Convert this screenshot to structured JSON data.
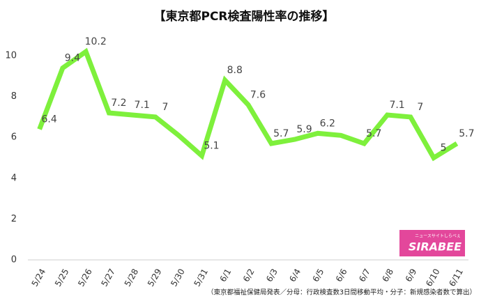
{
  "chart_data": {
    "type": "line",
    "title": "【東京都PCR検査陽性率の推移】",
    "footnote": "（東京都福祉保健局発表／分母：行政検査数3日間移動平均・分子：新規感染者数で算出）",
    "categories": [
      "5/24",
      "5/25",
      "5/26",
      "5/27",
      "5/28",
      "5/29",
      "5/30",
      "5/31",
      "6/1",
      "6/2",
      "6/3",
      "6/4",
      "6/5",
      "6/6",
      "6/7",
      "6/8",
      "6/9",
      "6/10",
      "6/11"
    ],
    "values": [
      6.4,
      9.4,
      10.2,
      7.2,
      7.1,
      7,
      6.1,
      5.1,
      8.8,
      7.6,
      5.7,
      5.9,
      6.2,
      6.1,
      5.7,
      7.1,
      7,
      5,
      5.7
    ],
    "value_labels": [
      "6.4",
      "9.4",
      "10.2",
      "7.2",
      "7.1",
      "7",
      null,
      "5.1",
      "8.8",
      "7.6",
      "5.7",
      "5.9",
      "6.2",
      null,
      "5.7",
      "7.1",
      "7",
      "5",
      "5.7"
    ],
    "color": "#7ef03c",
    "ylim": [
      0,
      10
    ],
    "yticks": [
      0,
      2,
      4,
      6,
      8,
      10
    ],
    "grid": false
  },
  "logo": {
    "text": "SIRABEE",
    "tagline": "ニュースサイトしらべぇ"
  }
}
